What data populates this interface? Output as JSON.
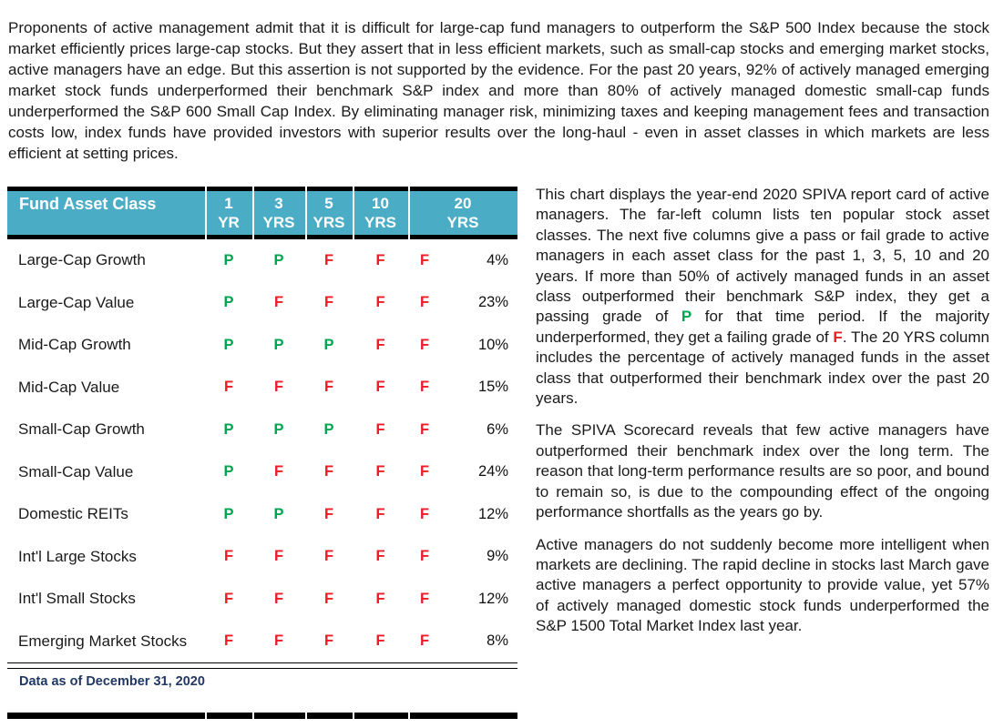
{
  "intro": {
    "text": "Proponents of active management admit that it is difficult for large-cap fund managers to outperform the S&P 500 Index because the stock market efficiently prices large-cap stocks. But they assert that in less efficient markets, such as small-cap stocks and emerging market stocks, active managers have an edge.  But this assertion is not supported by the evidence. For the past 20 years, 92% of actively managed emerging market stock funds underperformed their benchmark S&P index and more than 80% of actively managed domestic small-cap funds underperformed the S&P 600 Small Cap Index.  By eliminating manager risk, minimizing taxes and keeping management fees and transaction costs low, index funds have provided investors with superior results over the long-haul - even in asset classes in which markets are less efficient at setting prices."
  },
  "table": {
    "header": {
      "label": "Fund Asset Class",
      "columns": [
        {
          "line1": "1",
          "line2": "YR"
        },
        {
          "line1": "3",
          "line2": "YRS"
        },
        {
          "line1": "5",
          "line2": "YRS"
        },
        {
          "line1": "10",
          "line2": "YRS"
        },
        {
          "line1": "20",
          "line2": "YRS"
        }
      ]
    },
    "rows": [
      {
        "asset_class": "Large-Cap Growth",
        "grades": [
          "P",
          "P",
          "F",
          "F",
          "F"
        ],
        "pct_20yr": "4%"
      },
      {
        "asset_class": "Large-Cap Value",
        "grades": [
          "P",
          "F",
          "F",
          "F",
          "F"
        ],
        "pct_20yr": "23%"
      },
      {
        "asset_class": "Mid-Cap Growth",
        "grades": [
          "P",
          "P",
          "P",
          "F",
          "F"
        ],
        "pct_20yr": "10%"
      },
      {
        "asset_class": "Mid-Cap Value",
        "grades": [
          "F",
          "F",
          "F",
          "F",
          "F"
        ],
        "pct_20yr": "15%"
      },
      {
        "asset_class": "Small-Cap Growth",
        "grades": [
          "P",
          "P",
          "P",
          "F",
          "F"
        ],
        "pct_20yr": "6%"
      },
      {
        "asset_class": "Small-Cap Value",
        "grades": [
          "P",
          "F",
          "F",
          "F",
          "F"
        ],
        "pct_20yr": "24%"
      },
      {
        "asset_class": "Domestic REITs",
        "grades": [
          "P",
          "P",
          "F",
          "F",
          "F"
        ],
        "pct_20yr": "12%"
      },
      {
        "asset_class": "Int'l Large Stocks",
        "grades": [
          "F",
          "F",
          "F",
          "F",
          "F"
        ],
        "pct_20yr": "9%"
      },
      {
        "asset_class": "Int'l Small Stocks",
        "grades": [
          "F",
          "F",
          "F",
          "F",
          "F"
        ],
        "pct_20yr": "12%"
      },
      {
        "asset_class": "Emerging Market Stocks",
        "grades": [
          "F",
          "F",
          "F",
          "F",
          "F"
        ],
        "pct_20yr": "8%"
      }
    ],
    "footnote": "Data as of December 31, 2020",
    "colors": {
      "header_bg": "#4BACC6",
      "header_text": "#FFFFFF",
      "pass": "#00A550",
      "fail": "#ED1C24",
      "footnote_text": "#203864",
      "border": "#000000"
    }
  },
  "right": {
    "p1": {
      "segments": [
        {
          "text": "This chart displays the year-end 2020 SPIVA report card of active managers. The far-left column lists ten popular stock asset classes. The next five columns give a pass or fail grade to active managers in each asset class for the past 1, 3, 5, 10 and 20 years.  If more than 50% of actively managed funds in an asset class outperformed their benchmark S&P index, they get a passing grade of "
        },
        {
          "text": "P",
          "color": "#00A550",
          "bold": true
        },
        {
          "text": " for that time period. If the majority underperformed, they get a failing grade of "
        },
        {
          "text": "F",
          "color": "#ED1C24",
          "bold": true
        },
        {
          "text": ". The 20 YRS column includes the percentage of actively managed funds in the asset class that outperformed their benchmark index over the past 20 years."
        }
      ]
    },
    "p2": {
      "text": "The SPIVA Scorecard reveals that few active managers have outperformed their benchmark index over the long term. The reason that long-term performance results are so poor, and bound to remain so, is due to the compounding effect of the ongoing performance shortfalls as the years go by."
    },
    "p3": {
      "text": "Active managers do not suddenly become more intelligent when markets are declining. The rapid decline in stocks last March gave active managers a perfect opportunity to provide value, yet 57% of actively managed domestic stock funds underperformed the S&P 1500 Total Market Index last year."
    }
  }
}
